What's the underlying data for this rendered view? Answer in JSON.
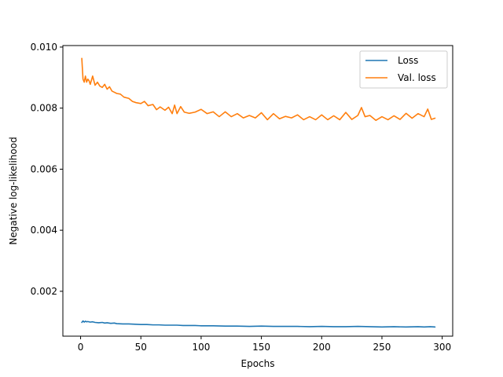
{
  "chart_data": {
    "type": "line",
    "xlabel": "Epochs",
    "ylabel": "Negative log-likelihood",
    "xlim": [
      -14.7,
      308.7
    ],
    "ylim": [
      0.00053,
      0.01005
    ],
    "xticks": [
      0,
      50,
      100,
      150,
      200,
      250,
      300
    ],
    "xtick_labels": [
      "0",
      "50",
      "100",
      "150",
      "200",
      "250",
      "300"
    ],
    "yticks": [
      0.002,
      0.004,
      0.006,
      0.008,
      0.01
    ],
    "ytick_labels": [
      "0.002",
      "0.004",
      "0.006",
      "0.008",
      "0.010"
    ],
    "grid": false,
    "legend_position": "top-right",
    "series": [
      {
        "name": "Loss",
        "color": "#1f77b4",
        "x": [
          1,
          2,
          3,
          4,
          5,
          6,
          8,
          10,
          12,
          15,
          18,
          20,
          22,
          25,
          28,
          30,
          35,
          40,
          45,
          50,
          55,
          60,
          65,
          70,
          75,
          80,
          85,
          90,
          95,
          100,
          110,
          120,
          130,
          140,
          150,
          160,
          170,
          180,
          190,
          200,
          210,
          220,
          230,
          240,
          250,
          260,
          270,
          280,
          285,
          290,
          294
        ],
        "y": [
          0.00098,
          0.00103,
          0.00099,
          0.00102,
          0.001,
          0.00101,
          0.00099,
          0.001,
          0.00098,
          0.00097,
          0.00098,
          0.00096,
          0.00097,
          0.00095,
          0.00096,
          0.00094,
          0.00093,
          0.00093,
          0.00092,
          0.00091,
          0.00091,
          0.0009,
          0.0009,
          0.00089,
          0.00089,
          0.00089,
          0.00088,
          0.00088,
          0.00088,
          0.00087,
          0.00087,
          0.00086,
          0.00086,
          0.00085,
          0.00086,
          0.00085,
          0.00085,
          0.00085,
          0.00084,
          0.00085,
          0.00084,
          0.00084,
          0.00085,
          0.00084,
          0.00083,
          0.00084,
          0.00083,
          0.00084,
          0.00083,
          0.00084,
          0.00083
        ]
      },
      {
        "name": "Val. loss",
        "color": "#ff7f0e",
        "x": [
          1,
          2,
          3,
          4,
          5,
          6,
          7,
          8,
          10,
          12,
          14,
          16,
          18,
          20,
          22,
          24,
          26,
          28,
          30,
          33,
          36,
          40,
          43,
          46,
          50,
          53,
          56,
          60,
          63,
          66,
          70,
          73,
          76,
          78,
          80,
          83,
          86,
          90,
          95,
          100,
          105,
          110,
          115,
          120,
          125,
          130,
          135,
          140,
          145,
          150,
          155,
          160,
          165,
          170,
          175,
          180,
          185,
          190,
          195,
          200,
          205,
          210,
          215,
          220,
          225,
          230,
          233,
          236,
          240,
          245,
          250,
          255,
          260,
          265,
          270,
          275,
          280,
          285,
          288,
          291,
          294
        ],
        "y": [
          0.00963,
          0.00895,
          0.00885,
          0.00905,
          0.00885,
          0.00895,
          0.0089,
          0.00878,
          0.00905,
          0.00875,
          0.00885,
          0.00872,
          0.00868,
          0.00878,
          0.00862,
          0.0087,
          0.00856,
          0.00852,
          0.00848,
          0.00846,
          0.00836,
          0.00832,
          0.00822,
          0.00818,
          0.00815,
          0.00822,
          0.00808,
          0.00812,
          0.00795,
          0.00804,
          0.00793,
          0.00803,
          0.00782,
          0.0081,
          0.00782,
          0.00805,
          0.00787,
          0.00783,
          0.00787,
          0.00796,
          0.00782,
          0.00788,
          0.00772,
          0.00788,
          0.00772,
          0.00782,
          0.00768,
          0.00776,
          0.00768,
          0.00785,
          0.00762,
          0.00782,
          0.00765,
          0.00773,
          0.00768,
          0.00778,
          0.00762,
          0.00772,
          0.00762,
          0.00778,
          0.00762,
          0.00775,
          0.00762,
          0.00786,
          0.00763,
          0.00776,
          0.00802,
          0.00772,
          0.00776,
          0.0076,
          0.00772,
          0.00762,
          0.00775,
          0.00763,
          0.00783,
          0.00767,
          0.00782,
          0.00772,
          0.00797,
          0.00763,
          0.00767
        ]
      }
    ]
  }
}
